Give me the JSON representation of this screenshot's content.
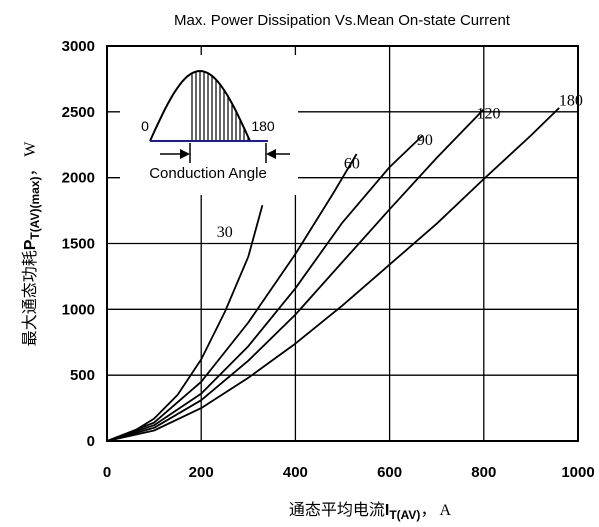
{
  "chart_data": {
    "type": "line",
    "title": "Max. Power Dissipation Vs.Mean On-state Current",
    "xlabel": {
      "prefix": "通态平均电流",
      "symbol": "I",
      "subscript": "T(AV)",
      "suffix": "，  A"
    },
    "ylabel": {
      "prefix": "最大通态功耗",
      "symbol": "P",
      "subscript": "T(AV)(max)",
      "suffix": "，  W"
    },
    "xlim": [
      0,
      1000
    ],
    "ylim": [
      0,
      3000
    ],
    "x_ticks": [
      0,
      200,
      400,
      600,
      800,
      1000
    ],
    "y_ticks": [
      0,
      500,
      1000,
      1500,
      2000,
      2500,
      3000
    ],
    "grid": true,
    "series": [
      {
        "name": "30",
        "label_at": [
          250,
          1550
        ],
        "points": [
          [
            0,
            0
          ],
          [
            50,
            60
          ],
          [
            100,
            170
          ],
          [
            150,
            350
          ],
          [
            200,
            620
          ],
          [
            250,
            980
          ],
          [
            300,
            1400
          ],
          [
            330,
            1790
          ]
        ]
      },
      {
        "name": "60",
        "label_at": [
          520,
          2070
        ],
        "points": [
          [
            0,
            0
          ],
          [
            100,
            140
          ],
          [
            200,
            450
          ],
          [
            300,
            900
          ],
          [
            400,
            1420
          ],
          [
            480,
            1880
          ],
          [
            530,
            2180
          ]
        ]
      },
      {
        "name": "90",
        "label_at": [
          675,
          2250
        ],
        "points": [
          [
            0,
            0
          ],
          [
            100,
            120
          ],
          [
            200,
            360
          ],
          [
            300,
            720
          ],
          [
            400,
            1160
          ],
          [
            500,
            1660
          ],
          [
            600,
            2080
          ],
          [
            670,
            2320
          ]
        ]
      },
      {
        "name": "120",
        "label_at": [
          810,
          2450
        ],
        "points": [
          [
            0,
            0
          ],
          [
            100,
            100
          ],
          [
            200,
            310
          ],
          [
            300,
            610
          ],
          [
            400,
            960
          ],
          [
            500,
            1360
          ],
          [
            600,
            1760
          ],
          [
            700,
            2150
          ],
          [
            800,
            2520
          ]
        ]
      },
      {
        "name": "180",
        "label_at": [
          985,
          2550
        ],
        "points": [
          [
            0,
            0
          ],
          [
            100,
            80
          ],
          [
            200,
            250
          ],
          [
            300,
            480
          ],
          [
            400,
            740
          ],
          [
            500,
            1030
          ],
          [
            600,
            1340
          ],
          [
            700,
            1650
          ],
          [
            800,
            1990
          ],
          [
            900,
            2320
          ],
          [
            960,
            2530
          ]
        ]
      }
    ],
    "inset": {
      "start_label": "0",
      "end_label": "180",
      "caption": "Conduction Angle"
    }
  }
}
